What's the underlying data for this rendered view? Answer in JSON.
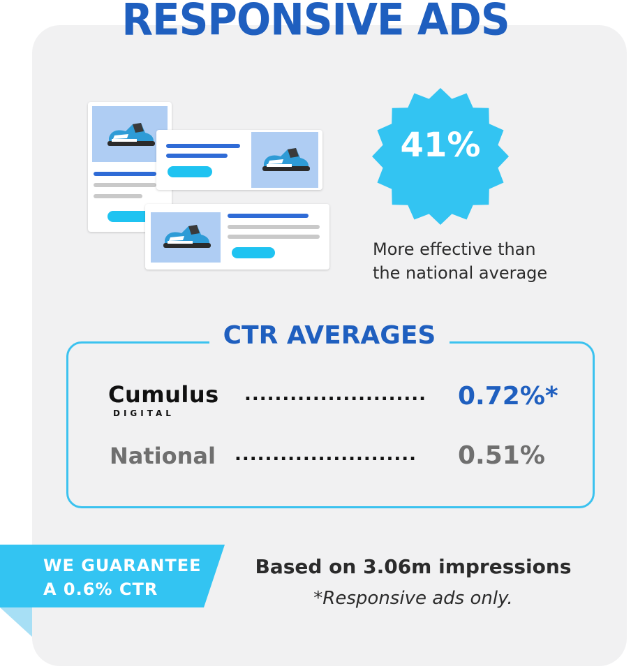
{
  "title": "RESPONSIVE ADS",
  "stat": {
    "value": "41%",
    "caption_line1": "More effective than",
    "caption_line2": "the national average"
  },
  "ctr": {
    "heading": "CTR AVERAGES",
    "cumulus": {
      "logo_main": "Cumulus",
      "logo_sub": "DIGITAL",
      "dots": "........................",
      "value": "0.72%*"
    },
    "national": {
      "label": "National",
      "dots": "........................",
      "value": "0.51%"
    }
  },
  "guarantee": {
    "line1": "WE GUARANTEE",
    "line2": "A 0.6% CTR"
  },
  "footnote": {
    "based_on": "Based on 3.06m impressions",
    "note": "*Responsive ads only."
  },
  "colors": {
    "brand_blue": "#1f5fbf",
    "accent_cyan": "#33c4f2",
    "card_bg": "#f1f1f2",
    "muted_gray": "#6f6f6f"
  },
  "icons": [
    "sneaker-icon",
    "starburst-badge"
  ]
}
